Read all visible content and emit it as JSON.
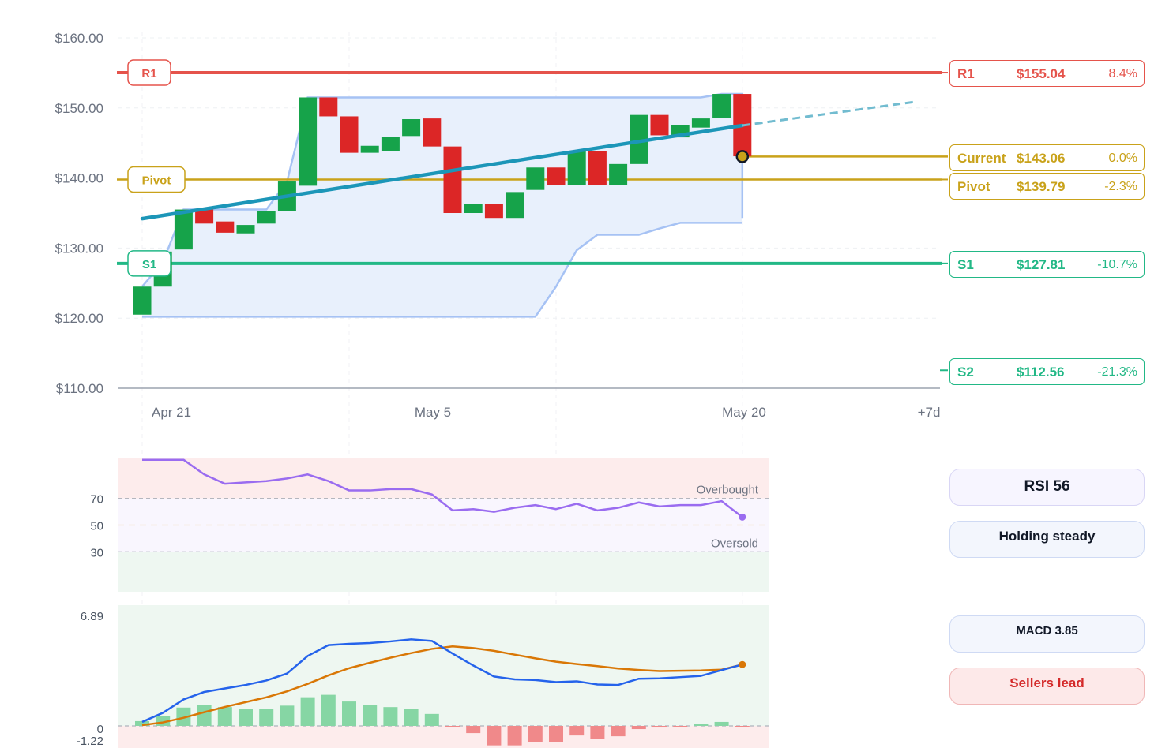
{
  "chart_data": [
    {
      "type": "candlestick",
      "title": "",
      "y_axis": {
        "ticks": [
          "$110.00",
          "$120.00",
          "$130.00",
          "$140.00",
          "$150.00",
          "$160.00"
        ],
        "ylim": [
          110,
          160
        ]
      },
      "x_axis": {
        "ticks": [
          "Apr 21",
          "May 5",
          "May 20",
          "+7d"
        ]
      },
      "grid": true,
      "colors": {
        "up": "#16a34a",
        "down": "#dc2626",
        "trend": "#1c96b8",
        "band_fill": "#e8f0fc",
        "band_line": "#a6c2f4"
      },
      "candles": [
        {
          "o": 120.5,
          "h": 124.5,
          "l": 120.5,
          "c": 124.5
        },
        {
          "o": 124.5,
          "h": 129.5,
          "l": 124.5,
          "c": 129.5
        },
        {
          "o": 129.8,
          "h": 135.5,
          "l": 129.8,
          "c": 135.5
        },
        {
          "o": 135.5,
          "h": 135.5,
          "l": 133.5,
          "c": 133.5
        },
        {
          "o": 133.8,
          "h": 133.8,
          "l": 132.2,
          "c": 132.2
        },
        {
          "o": 132.1,
          "h": 133.3,
          "l": 132.1,
          "c": 133.3
        },
        {
          "o": 133.5,
          "h": 135.3,
          "l": 133.5,
          "c": 135.3
        },
        {
          "o": 135.3,
          "h": 139.5,
          "l": 135.3,
          "c": 139.5
        },
        {
          "o": 138.9,
          "h": 151.5,
          "l": 138.9,
          "c": 151.5
        },
        {
          "o": 151.5,
          "h": 151.5,
          "l": 148.8,
          "c": 148.8
        },
        {
          "o": 148.8,
          "h": 148.8,
          "l": 143.6,
          "c": 143.6
        },
        {
          "o": 143.6,
          "h": 144.6,
          "l": 143.6,
          "c": 144.6
        },
        {
          "o": 143.8,
          "h": 145.9,
          "l": 143.8,
          "c": 145.9
        },
        {
          "o": 146.0,
          "h": 148.4,
          "l": 146.0,
          "c": 148.4
        },
        {
          "o": 148.5,
          "h": 148.5,
          "l": 144.5,
          "c": 144.5
        },
        {
          "o": 144.5,
          "h": 144.5,
          "l": 135.0,
          "c": 135.0
        },
        {
          "o": 135.0,
          "h": 136.3,
          "l": 135.0,
          "c": 136.3
        },
        {
          "o": 136.3,
          "h": 136.3,
          "l": 134.3,
          "c": 134.3
        },
        {
          "o": 134.3,
          "h": 138.0,
          "l": 134.3,
          "c": 138.0
        },
        {
          "o": 138.3,
          "h": 141.5,
          "l": 138.3,
          "c": 141.5
        },
        {
          "o": 141.5,
          "h": 141.5,
          "l": 139.0,
          "c": 139.0
        },
        {
          "o": 139.0,
          "h": 143.8,
          "l": 139.0,
          "c": 143.8
        },
        {
          "o": 143.8,
          "h": 143.8,
          "l": 139.0,
          "c": 139.0
        },
        {
          "o": 139.0,
          "h": 142.0,
          "l": 139.0,
          "c": 142.0
        },
        {
          "o": 142.0,
          "h": 149.0,
          "l": 142.0,
          "c": 149.0
        },
        {
          "o": 149.0,
          "h": 149.0,
          "l": 146.1,
          "c": 146.1
        },
        {
          "o": 145.8,
          "h": 147.5,
          "l": 145.8,
          "c": 147.5
        },
        {
          "o": 147.2,
          "h": 148.5,
          "l": 147.2,
          "c": 148.5
        },
        {
          "o": 148.6,
          "h": 152.0,
          "l": 148.6,
          "c": 152.0
        },
        {
          "o": 152.0,
          "h": 152.0,
          "l": 143.1,
          "c": 143.1
        }
      ],
      "band_upper": [
        124.5,
        128,
        135.5,
        135.5,
        135.5,
        135.5,
        135.5,
        139.5,
        151.5,
        151.5,
        151.5,
        151.5,
        151.5,
        151.5,
        151.5,
        151.5,
        151.5,
        151.5,
        151.5,
        151.5,
        151.5,
        151.5,
        151.5,
        151.5,
        151.5,
        151.5,
        151.5,
        151.5,
        152,
        152
      ],
      "band_lower": [
        120.2,
        120.2,
        120.2,
        120.2,
        120.2,
        120.2,
        120.2,
        120.2,
        120.2,
        120.2,
        120.2,
        120.2,
        120.2,
        120.2,
        120.2,
        120.2,
        120.2,
        120.2,
        120.2,
        120.2,
        124.5,
        129.7,
        131.9,
        131.9,
        131.9,
        132.8,
        133.6,
        133.6,
        133.6,
        133.6
      ],
      "band_end_upper": 134.3,
      "trend": {
        "start": 134.2,
        "end_current": 147.5,
        "end_projection": 150.9
      },
      "current_price": 143.06,
      "levels": [
        {
          "name": "R1",
          "value": 155.04,
          "price": "$155.04",
          "pct": "8.4%",
          "color": "#e5534b",
          "chip": true
        },
        {
          "name": "Current",
          "value": 143.06,
          "price": "$143.06",
          "pct": "0.0%",
          "color": "#c9a21a",
          "chip": false
        },
        {
          "name": "Pivot",
          "value": 139.79,
          "price": "$139.79",
          "pct": "-2.3%",
          "color": "#c9a21a",
          "chip": true
        },
        {
          "name": "S1",
          "value": 127.81,
          "price": "$127.81",
          "pct": "-10.7%",
          "color": "#22b886",
          "chip": true
        },
        {
          "name": "S2",
          "value": 112.56,
          "price": "$112.56",
          "pct": "-21.3%",
          "color": "#22b886",
          "chip": false
        }
      ]
    },
    {
      "type": "line",
      "title": "",
      "y_axis": {
        "ticks": [
          "30",
          "50",
          "70"
        ],
        "ylim": [
          0,
          100
        ]
      },
      "zones": {
        "overbought": 70,
        "oversold": 30,
        "mid": 50
      },
      "annotations": [
        "Overbought",
        "Oversold"
      ],
      "colors": {
        "line": "#9a6cf0"
      },
      "rsi": [
        99,
        99,
        99,
        88,
        81,
        82,
        83,
        85,
        88,
        83,
        76,
        76,
        77,
        77,
        73,
        61,
        62,
        60,
        63,
        65,
        62,
        66,
        61,
        63,
        67,
        64,
        65,
        65,
        68,
        56
      ]
    },
    {
      "type": "bar+line",
      "title": "",
      "y_axis": {
        "ticks": [
          "6.89",
          "0",
          "-1.22"
        ],
        "ylim": [
          -1.22,
          6.89
        ]
      },
      "colors": {
        "macd": "#2563eb",
        "signal": "#d97706",
        "hist_pos": "#86d6a4",
        "hist_neg": "#f0898a"
      },
      "macd": [
        0.25,
        0.82,
        1.66,
        2.13,
        2.35,
        2.57,
        2.85,
        3.29,
        4.39,
        5.07,
        5.15,
        5.2,
        5.3,
        5.43,
        5.33,
        4.54,
        3.79,
        3.1,
        2.92,
        2.88,
        2.75,
        2.8,
        2.6,
        2.57,
        2.96,
        2.98,
        3.06,
        3.14,
        3.5,
        3.85
      ],
      "signal": [
        0.05,
        0.22,
        0.51,
        0.86,
        1.19,
        1.49,
        1.79,
        2.17,
        2.64,
        3.17,
        3.62,
        3.96,
        4.28,
        4.57,
        4.83,
        4.99,
        4.88,
        4.71,
        4.47,
        4.24,
        4.03,
        3.88,
        3.75,
        3.6,
        3.51,
        3.44,
        3.46,
        3.48,
        3.53,
        3.85
      ],
      "histogram": [
        0.3,
        0.6,
        1.15,
        1.3,
        1.18,
        1.08,
        1.08,
        1.27,
        1.8,
        1.95,
        1.53,
        1.3,
        1.18,
        1.08,
        0.75,
        -0.03,
        -0.45,
        -1.22,
        -1.22,
        -1.02,
        -1.02,
        -0.6,
        -0.8,
        -0.65,
        -0.2,
        -0.1,
        -0.05,
        0.1,
        0.25,
        -0.02
      ]
    }
  ],
  "indicators": {
    "rsi_label": "RSI 56",
    "rsi_status": "Holding steady",
    "macd_label": "MACD 3.85",
    "macd_status": "Sellers lead"
  }
}
